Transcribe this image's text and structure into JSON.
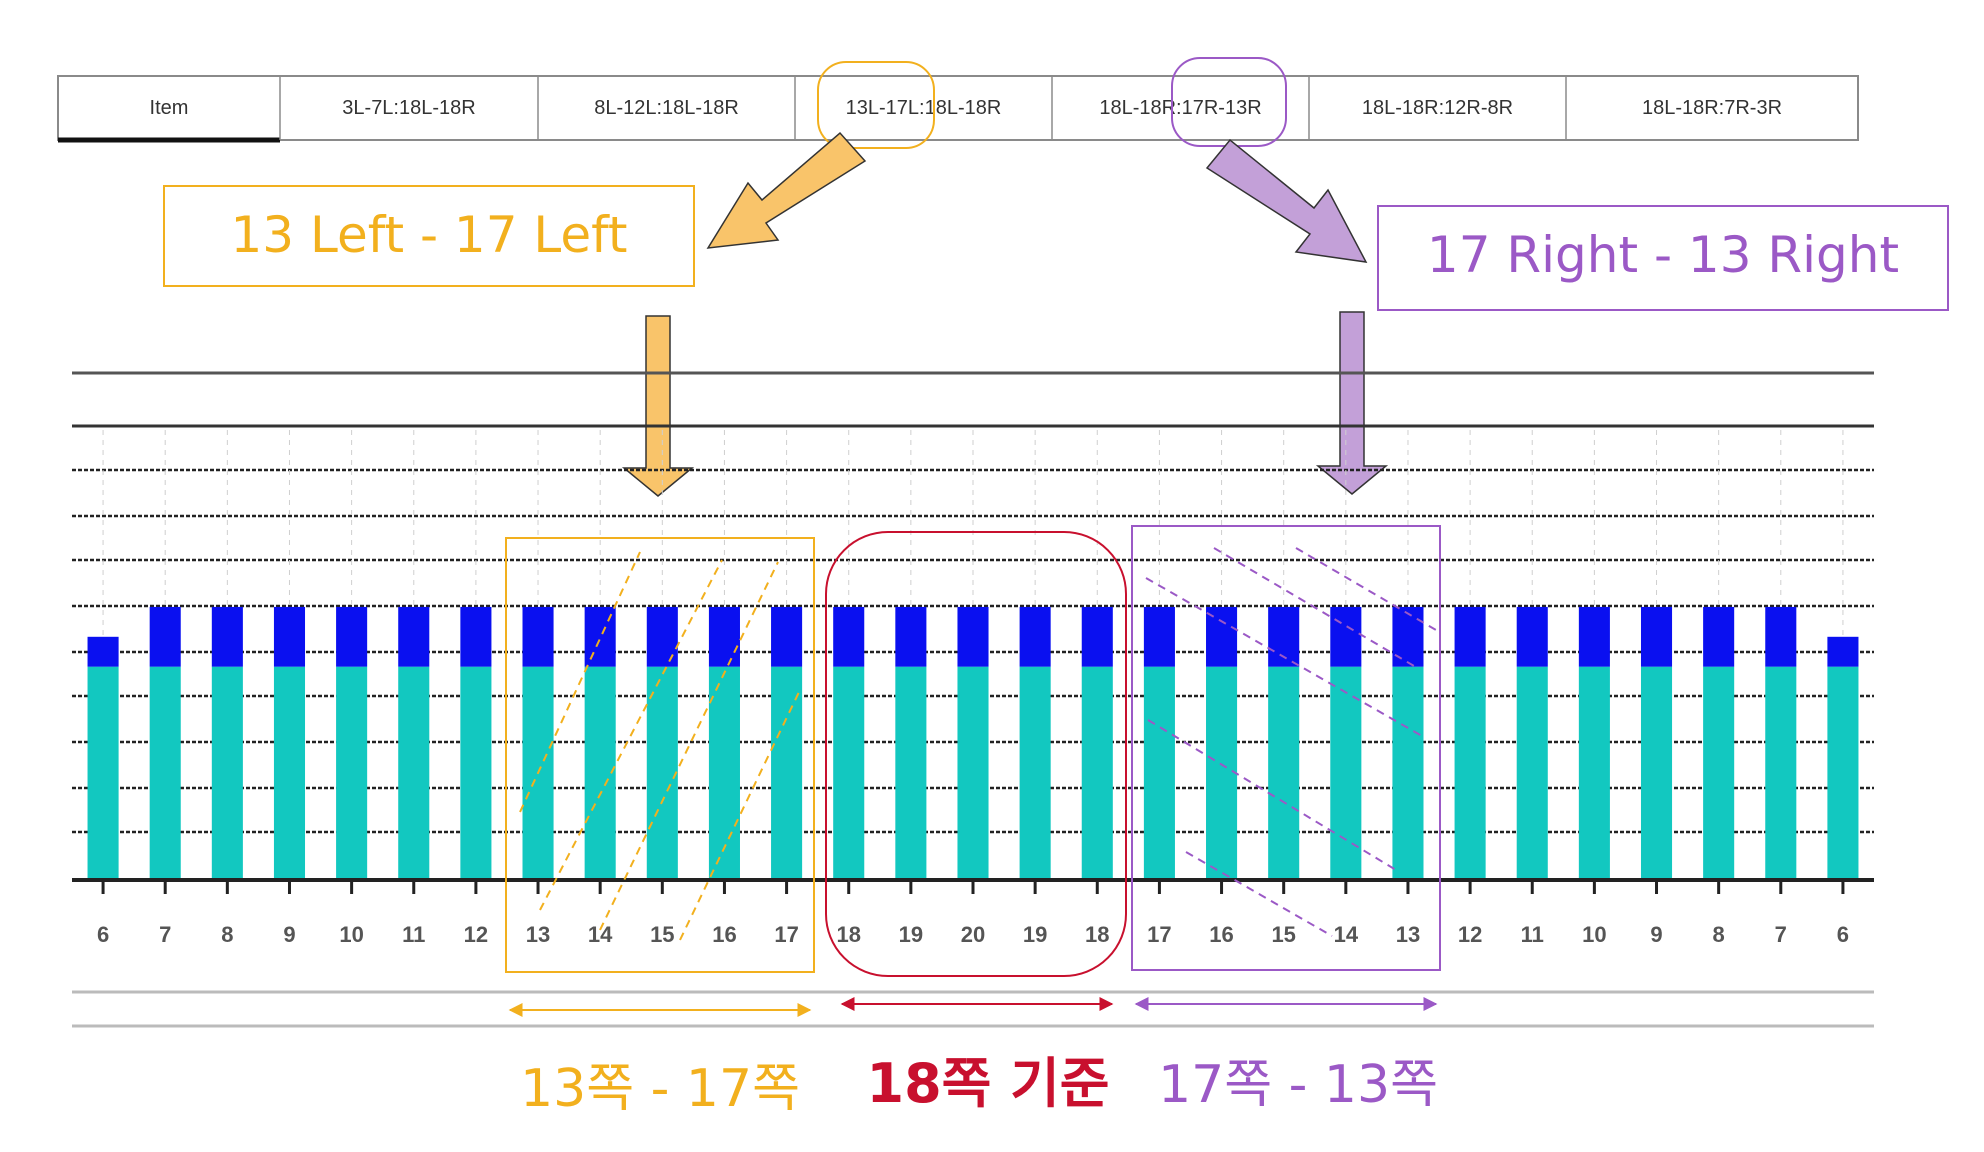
{
  "header_table": {
    "columns": [
      "Item",
      "3L-7L:18L-18R",
      "8L-12L:18L-18R",
      "13L-17L:18L-18R",
      "18L-18R:17R-13R",
      "18L-18R:12R-8R",
      "18L-18R:7R-3R"
    ]
  },
  "callouts": {
    "left_label": "13 Left - 17 Left",
    "right_label": "17 Right - 13 Right"
  },
  "colors": {
    "bar_top": "#0a10f0",
    "bar_bottom": "#12c8c0",
    "orange": "#f2b01e",
    "orange_fill": "#f9c46a",
    "red": "#c8102e",
    "purple": "#9b59c6",
    "purple_fill": "#c3a0d8",
    "grid": "#1a1a1a"
  },
  "chart_data": {
    "type": "bar",
    "stacked": true,
    "categories": [
      "6",
      "7",
      "8",
      "9",
      "10",
      "11",
      "12",
      "13",
      "14",
      "15",
      "16",
      "17",
      "18",
      "19",
      "20",
      "19",
      "18",
      "17",
      "16",
      "15",
      "14",
      "13",
      "12",
      "11",
      "10",
      "9",
      "8",
      "7",
      "6"
    ],
    "series": [
      {
        "name": "",
        "values": [
          5,
          5,
          5,
          5,
          5,
          5,
          5,
          5,
          5,
          5,
          5,
          5,
          5,
          5,
          5,
          5,
          5,
          5,
          5,
          5,
          5,
          5,
          5,
          5,
          5,
          5,
          5,
          5,
          5
        ]
      },
      {
        "name": "",
        "values": [
          0.7,
          1.4,
          1.4,
          1.4,
          1.4,
          1.4,
          1.4,
          1.4,
          1.4,
          1.4,
          1.4,
          1.4,
          1.4,
          1.4,
          1.4,
          1.4,
          1.4,
          1.4,
          1.4,
          1.4,
          1.4,
          1.4,
          1.4,
          1.4,
          1.4,
          1.4,
          1.4,
          1.4,
          0.7
        ]
      }
    ],
    "ylim": [
      0,
      12
    ],
    "title": "",
    "xlabel": "",
    "ylabel": ""
  },
  "annotations": {
    "group_left": {
      "label": "13쪽 - 17쪽",
      "from_index": 7,
      "to_index": 11
    },
    "group_center": {
      "label": "18쪽 기준",
      "from_index": 12,
      "to_index": 16
    },
    "group_right": {
      "label": "17쪽 - 13쪽",
      "from_index": 17,
      "to_index": 21
    }
  }
}
